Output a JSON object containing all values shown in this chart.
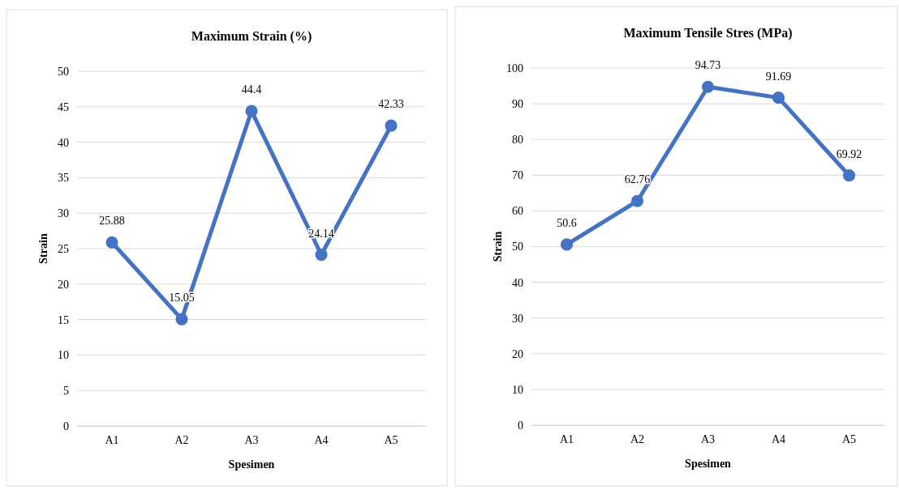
{
  "chart_data": [
    {
      "type": "line",
      "title": "Maximum Strain (%)",
      "xlabel": "Spesimen",
      "ylabel": "Strain",
      "categories": [
        "A1",
        "A2",
        "A3",
        "A4",
        "A5"
      ],
      "series": [
        {
          "color": "#4472c4",
          "values": [
            25.88,
            15.05,
            44.4,
            24.14,
            42.33
          ]
        }
      ],
      "ylim": [
        0,
        50
      ],
      "yticks": [
        0,
        5,
        10,
        15,
        20,
        25,
        30,
        35,
        40,
        45,
        50
      ],
      "grid": "y",
      "marker": "circle",
      "line_style": "solid",
      "data_labels": true
    },
    {
      "type": "line",
      "title": "Maximum Tensile Stres (MPa)",
      "xlabel": "Spesimen",
      "ylabel": "Strain",
      "categories": [
        "A1",
        "A2",
        "A3",
        "A4",
        "A5"
      ],
      "series": [
        {
          "color": "#4472c4",
          "values": [
            50.6,
            62.76,
            94.73,
            91.69,
            69.92
          ]
        }
      ],
      "ylim": [
        0,
        100
      ],
      "yticks": [
        0,
        10,
        20,
        30,
        40,
        50,
        60,
        70,
        80,
        90,
        100
      ],
      "grid": "y",
      "marker": "circle",
      "line_style": "solid",
      "data_labels": true
    }
  ]
}
